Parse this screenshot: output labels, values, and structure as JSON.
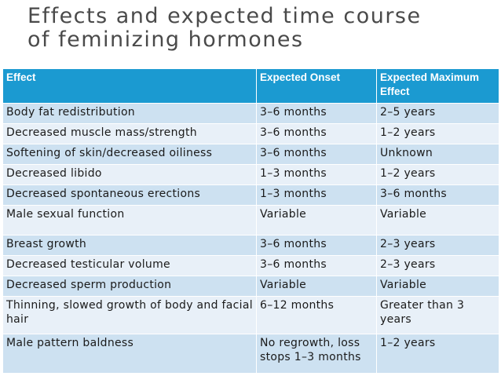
{
  "title": {
    "line1": "Effects and expected time course",
    "line2": "of feminizing hormones"
  },
  "table": {
    "headers": [
      "Effect",
      "Expected Onset",
      "Expected Maximum Effect"
    ],
    "rows": [
      [
        "Body fat redistribution",
        "3–6 months",
        "2–5 years"
      ],
      [
        "Decreased muscle mass/strength",
        "3–6 months",
        "1–2 years"
      ],
      [
        "Softening of skin/decreased oiliness",
        "3–6 months",
        "Unknown"
      ],
      [
        "Decreased libido",
        "1–3 months",
        "1–2 years"
      ],
      [
        "Decreased spontaneous erections",
        "1–3 months",
        "3–6 months"
      ],
      [
        "Male sexual function",
        "Variable",
        "Variable"
      ],
      [
        "Breast growth",
        "3–6 months",
        "2–3 years"
      ],
      [
        "Decreased testicular volume",
        "3–6 months",
        "2–3 years"
      ],
      [
        "Decreased sperm production",
        "Variable",
        "Variable"
      ],
      [
        "Thinning, slowed growth of body and facial hair",
        "6–12 months",
        "Greater than 3 years"
      ],
      [
        "Male pattern baldness",
        "No regrowth, loss stops 1–3 months",
        "1–2 years"
      ]
    ]
  }
}
